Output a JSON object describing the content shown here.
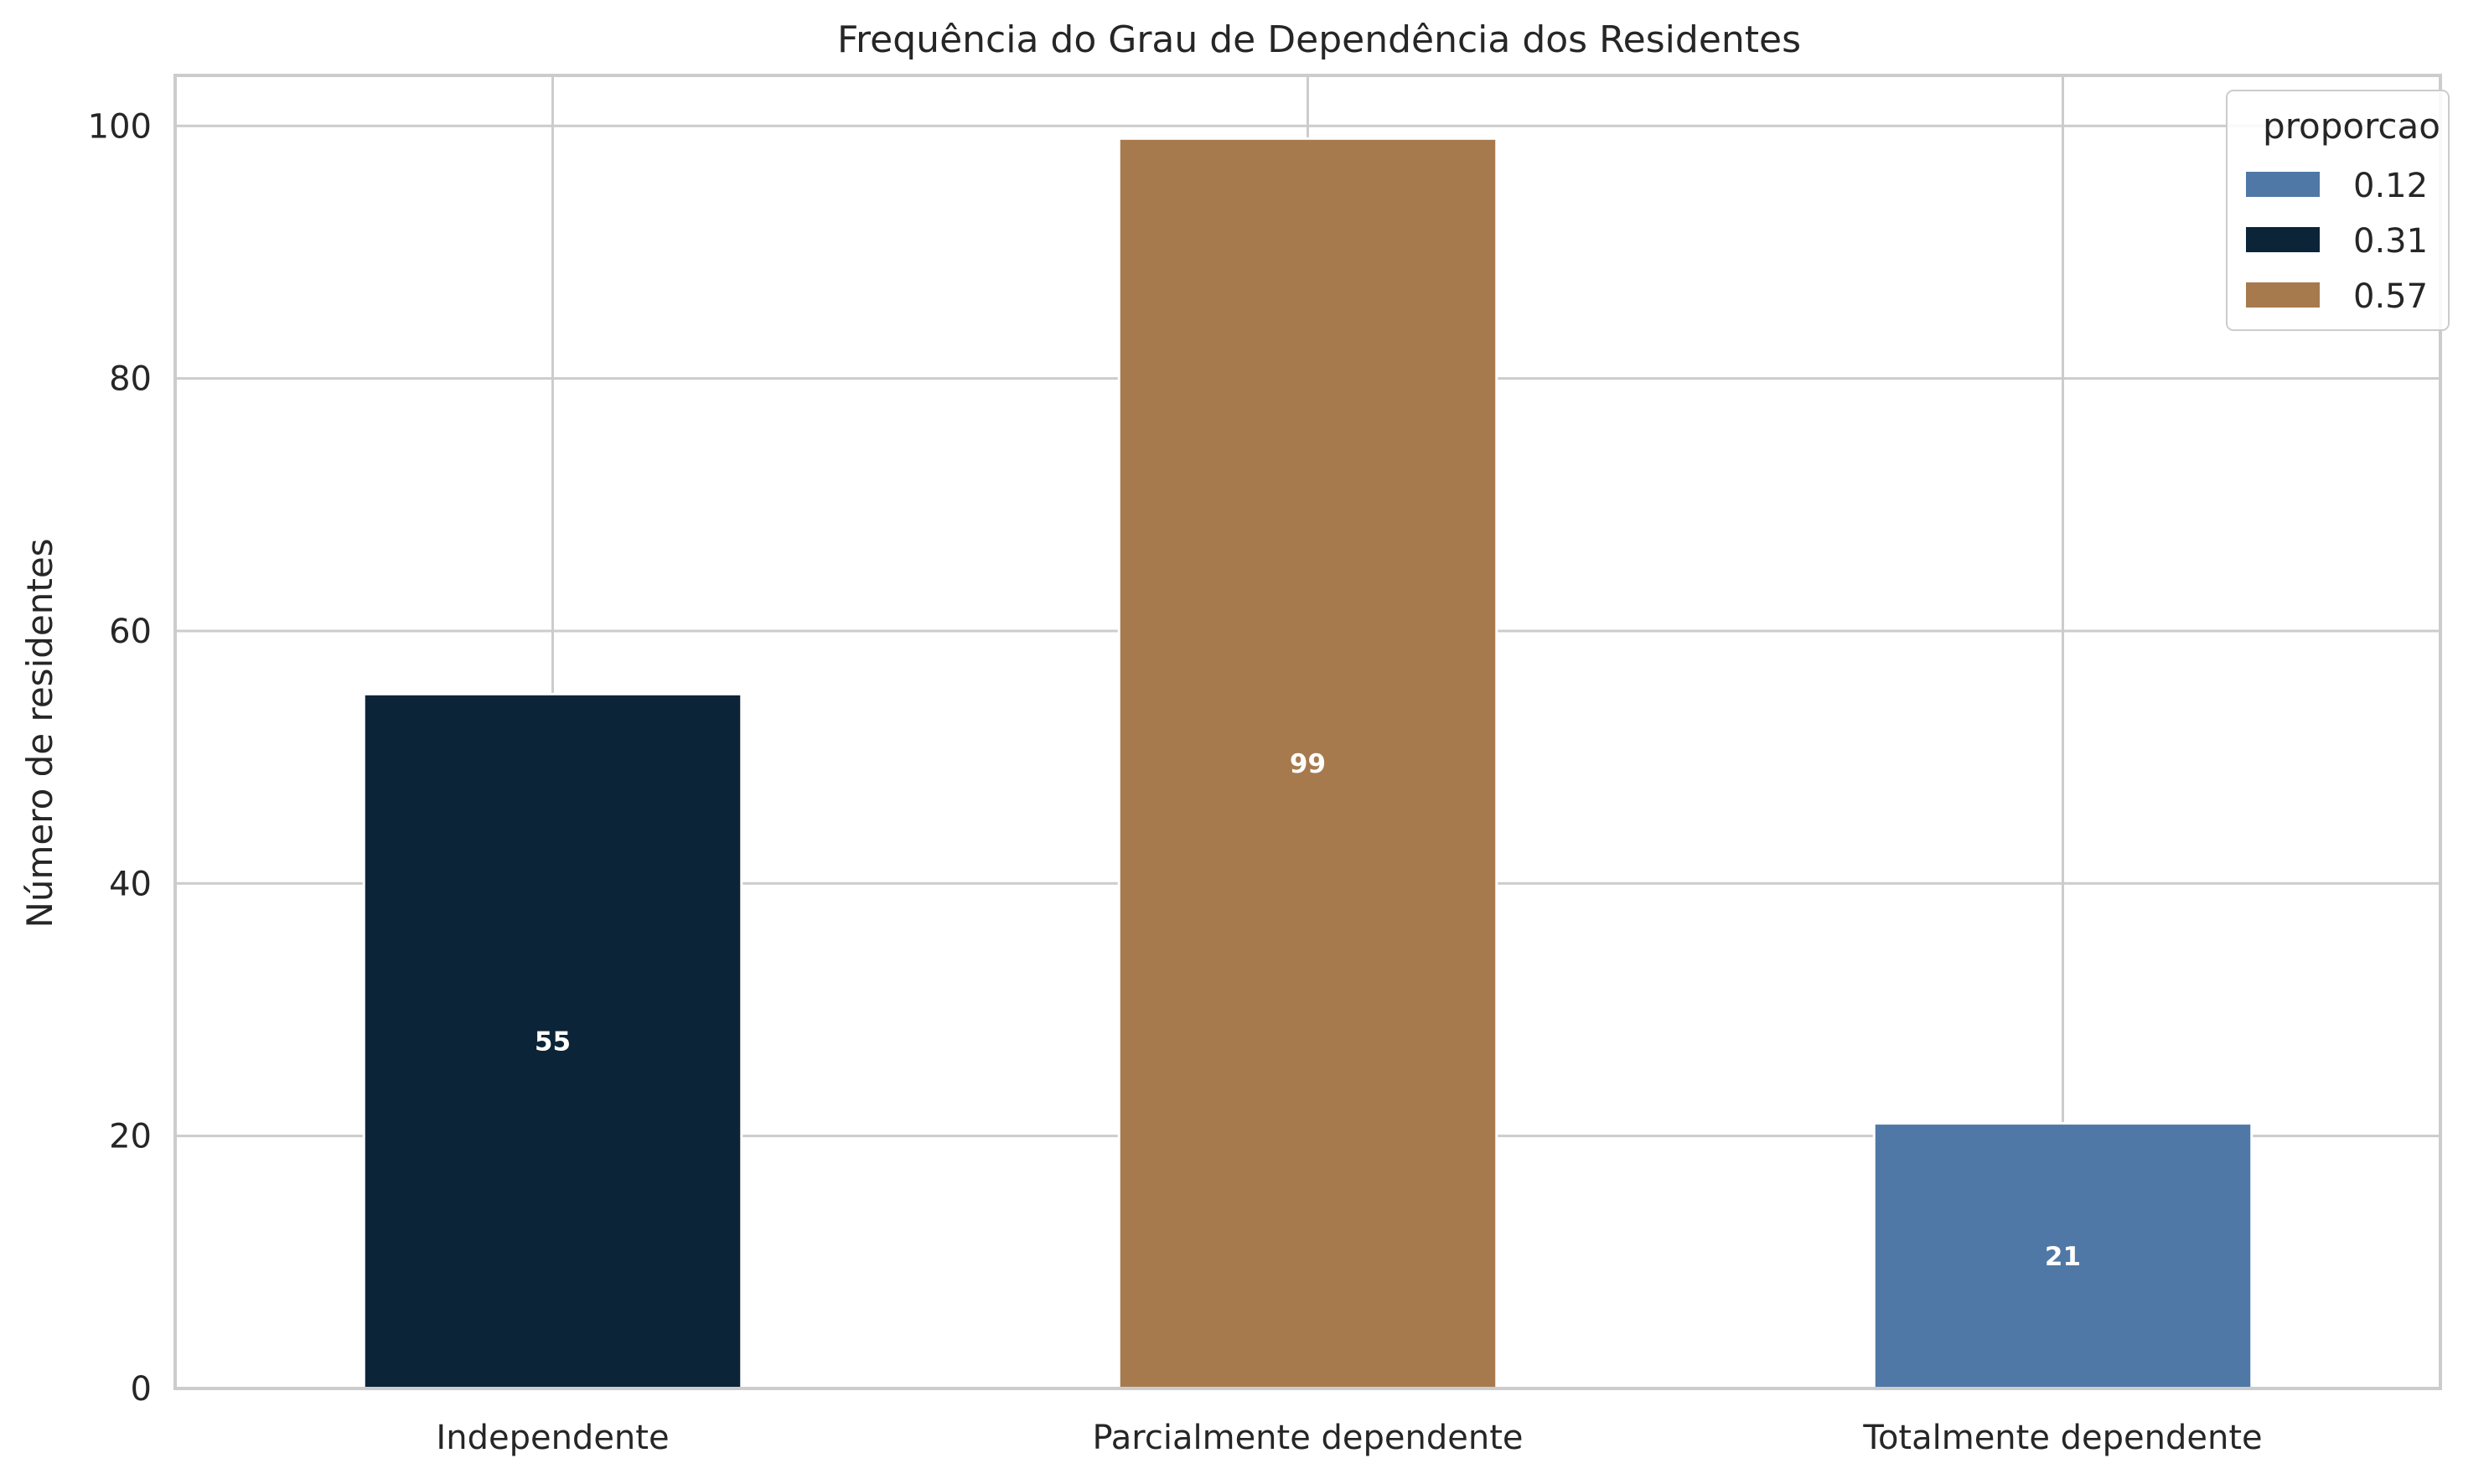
{
  "chart_data": {
    "type": "bar",
    "title": "Frequência do Grau de Dependência dos Residentes",
    "xlabel": "",
    "ylabel": "Número de residentes",
    "categories": [
      "Independente",
      "Parcialmente dependente",
      "Totalmente dependente"
    ],
    "values": [
      55,
      99,
      21
    ],
    "bar_colors": [
      "#0c2438",
      "#a77a4e",
      "#4f78a6"
    ],
    "data_labels": [
      "55",
      "99",
      "21"
    ],
    "ylim": [
      0,
      104
    ],
    "yticks": [
      0,
      20,
      40,
      60,
      80,
      100
    ],
    "grid": true,
    "legend": {
      "title": "proporcao",
      "placement": "top-right",
      "entries": [
        {
          "label": "0.12",
          "color": "#4f78a6"
        },
        {
          "label": "0.31",
          "color": "#0c2438"
        },
        {
          "label": "0.57",
          "color": "#a77a4e"
        }
      ]
    }
  }
}
